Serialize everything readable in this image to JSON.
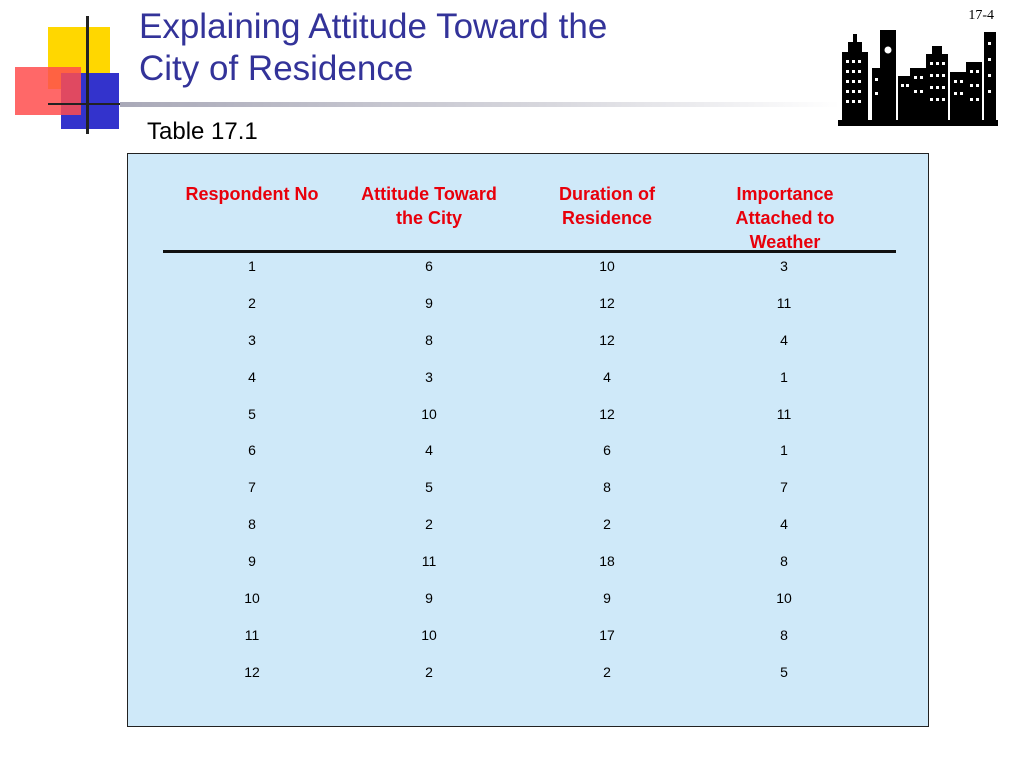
{
  "slide": {
    "title_line1": "Explaining Attitude Toward the",
    "title_line2": "City of Residence",
    "number": "17-4",
    "caption": "Table 17.1"
  },
  "table": {
    "headers": [
      [
        "Respondent No"
      ],
      [
        "Attitude Toward",
        "the City"
      ],
      [
        "Duration of",
        "Residence"
      ],
      [
        "Importance",
        "Attached to",
        "Weather"
      ]
    ],
    "rows": [
      [
        "1",
        "6",
        "10",
        "3"
      ],
      [
        "2",
        "9",
        "12",
        "11"
      ],
      [
        "3",
        "8",
        "12",
        "4"
      ],
      [
        "4",
        "3",
        "4",
        "1"
      ],
      [
        "5",
        "10",
        "12",
        "11"
      ],
      [
        "6",
        "4",
        "6",
        "1"
      ],
      [
        "7",
        "5",
        "8",
        "7"
      ],
      [
        "8",
        "2",
        "2",
        "4"
      ],
      [
        "9",
        "11",
        "18",
        "8"
      ],
      [
        "10",
        "9",
        "9",
        "10"
      ],
      [
        "11",
        "10",
        "17",
        "8"
      ],
      [
        "12",
        "2",
        "2",
        "5"
      ]
    ]
  },
  "colors": {
    "title": "#333399",
    "header_text": "#e8000b",
    "table_background": "#cfe9f9"
  },
  "icons": [
    "city-skyline-icon"
  ]
}
